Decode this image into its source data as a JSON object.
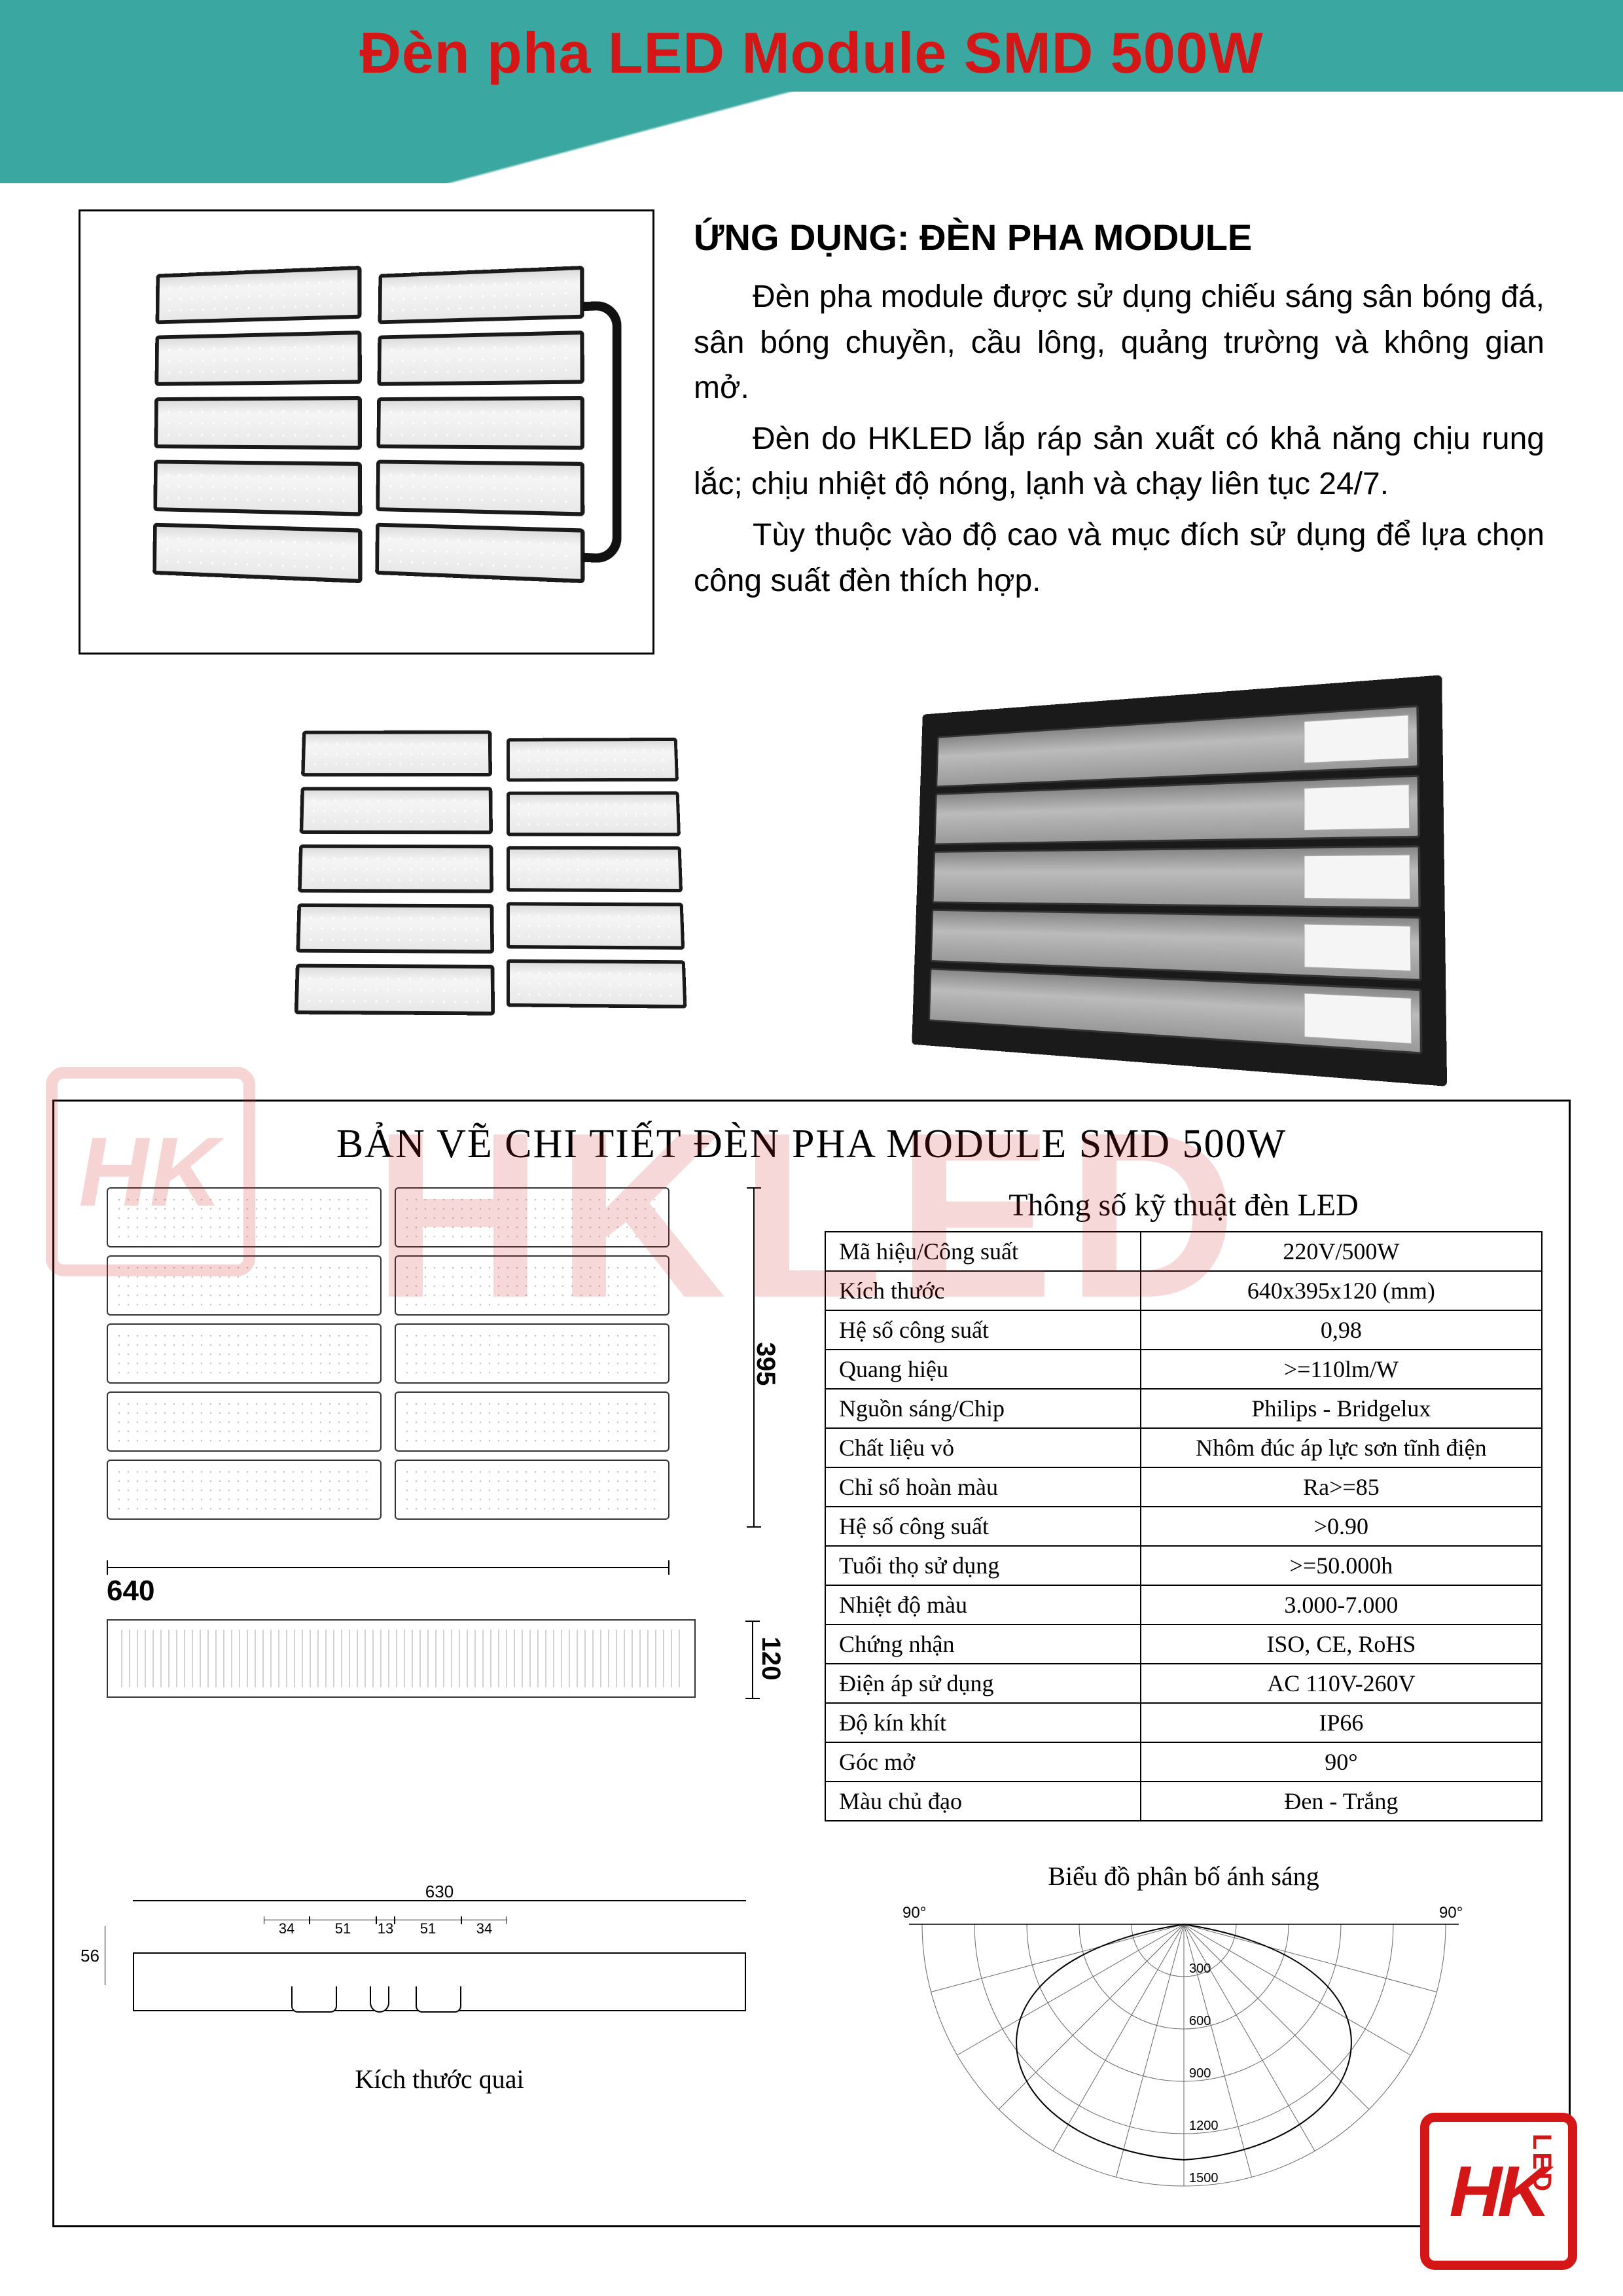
{
  "header": {
    "title": "Đèn pha LED Module SMD 500W"
  },
  "application": {
    "heading": "ỨNG DỤNG: ĐÈN PHA MODULE",
    "p1": "Đèn pha module được sử dụng chiếu sáng sân bóng đá, sân bóng chuyền, cầu lông, quảng trường và không gian mở.",
    "p2": "Đèn do HKLED lắp ráp sản xuất có khả năng chịu rung lắc; chịu nhiệt độ nóng, lạnh và chạy liên tục 24/7.",
    "p3": "Tùy thuộc vào độ cao và mục đích sử dụng để lựa chọn công suất đèn thích hợp."
  },
  "watermark": {
    "text": "HKLED",
    "box_text": "HK"
  },
  "detail": {
    "section_title": "BẢN VẼ CHI TIẾT ĐÈN PHA MODULE SMD 500W",
    "dims": {
      "width": "640",
      "height": "395",
      "depth": "120"
    },
    "spec_title": "Thông số kỹ thuật đèn LED",
    "specs": [
      {
        "k": "Mã hiệu/Công suất",
        "v": "220V/500W"
      },
      {
        "k": "Kích thước",
        "v": "640x395x120 (mm)"
      },
      {
        "k": "Hệ số công suất",
        "v": "0,98"
      },
      {
        "k": "Quang hiệu",
        "v": ">=110lm/W"
      },
      {
        "k": "Nguồn sáng/Chip",
        "v": "Philips - Bridgelux"
      },
      {
        "k": "Chất liệu vỏ",
        "v": "Nhôm đúc áp lực sơn tĩnh điện"
      },
      {
        "k": "Chỉ số hoàn màu",
        "v": "Ra>=85"
      },
      {
        "k": "Hệ số công suất",
        "v": ">0.90"
      },
      {
        "k": "Tuổi thọ sử dụng",
        "v": ">=50.000h"
      },
      {
        "k": "Nhiệt độ màu",
        "v": "3.000-7.000"
      },
      {
        "k": "Chứng nhận",
        "v": "ISO, CE, RoHS"
      },
      {
        "k": "Điện áp sử dụng",
        "v": "AC 110V-260V"
      },
      {
        "k": "Độ kín khít",
        "v": "IP66"
      },
      {
        "k": "Góc mở",
        "v": "90°"
      },
      {
        "k": "Màu chủ đạo",
        "v": "Đen - Trắng"
      }
    ]
  },
  "bracket": {
    "total": "630",
    "segments": [
      "34",
      "51",
      "13",
      "51",
      "34"
    ],
    "height": "56",
    "caption": "Kích thước quai"
  },
  "polar": {
    "title": "Biểu đồ phân bố ánh sáng",
    "left_angle": "90°",
    "right_angle": "90°",
    "rings": [
      "300",
      "600",
      "900",
      "1200",
      "1500"
    ]
  },
  "logo": {
    "main": "HK",
    "side": "LED"
  },
  "colors": {
    "header_bg": "#3aa8a0",
    "accent_red": "#d41616",
    "watermark_red": "rgba(210,40,40,0.18)",
    "text": "#000000",
    "border": "#000000"
  }
}
